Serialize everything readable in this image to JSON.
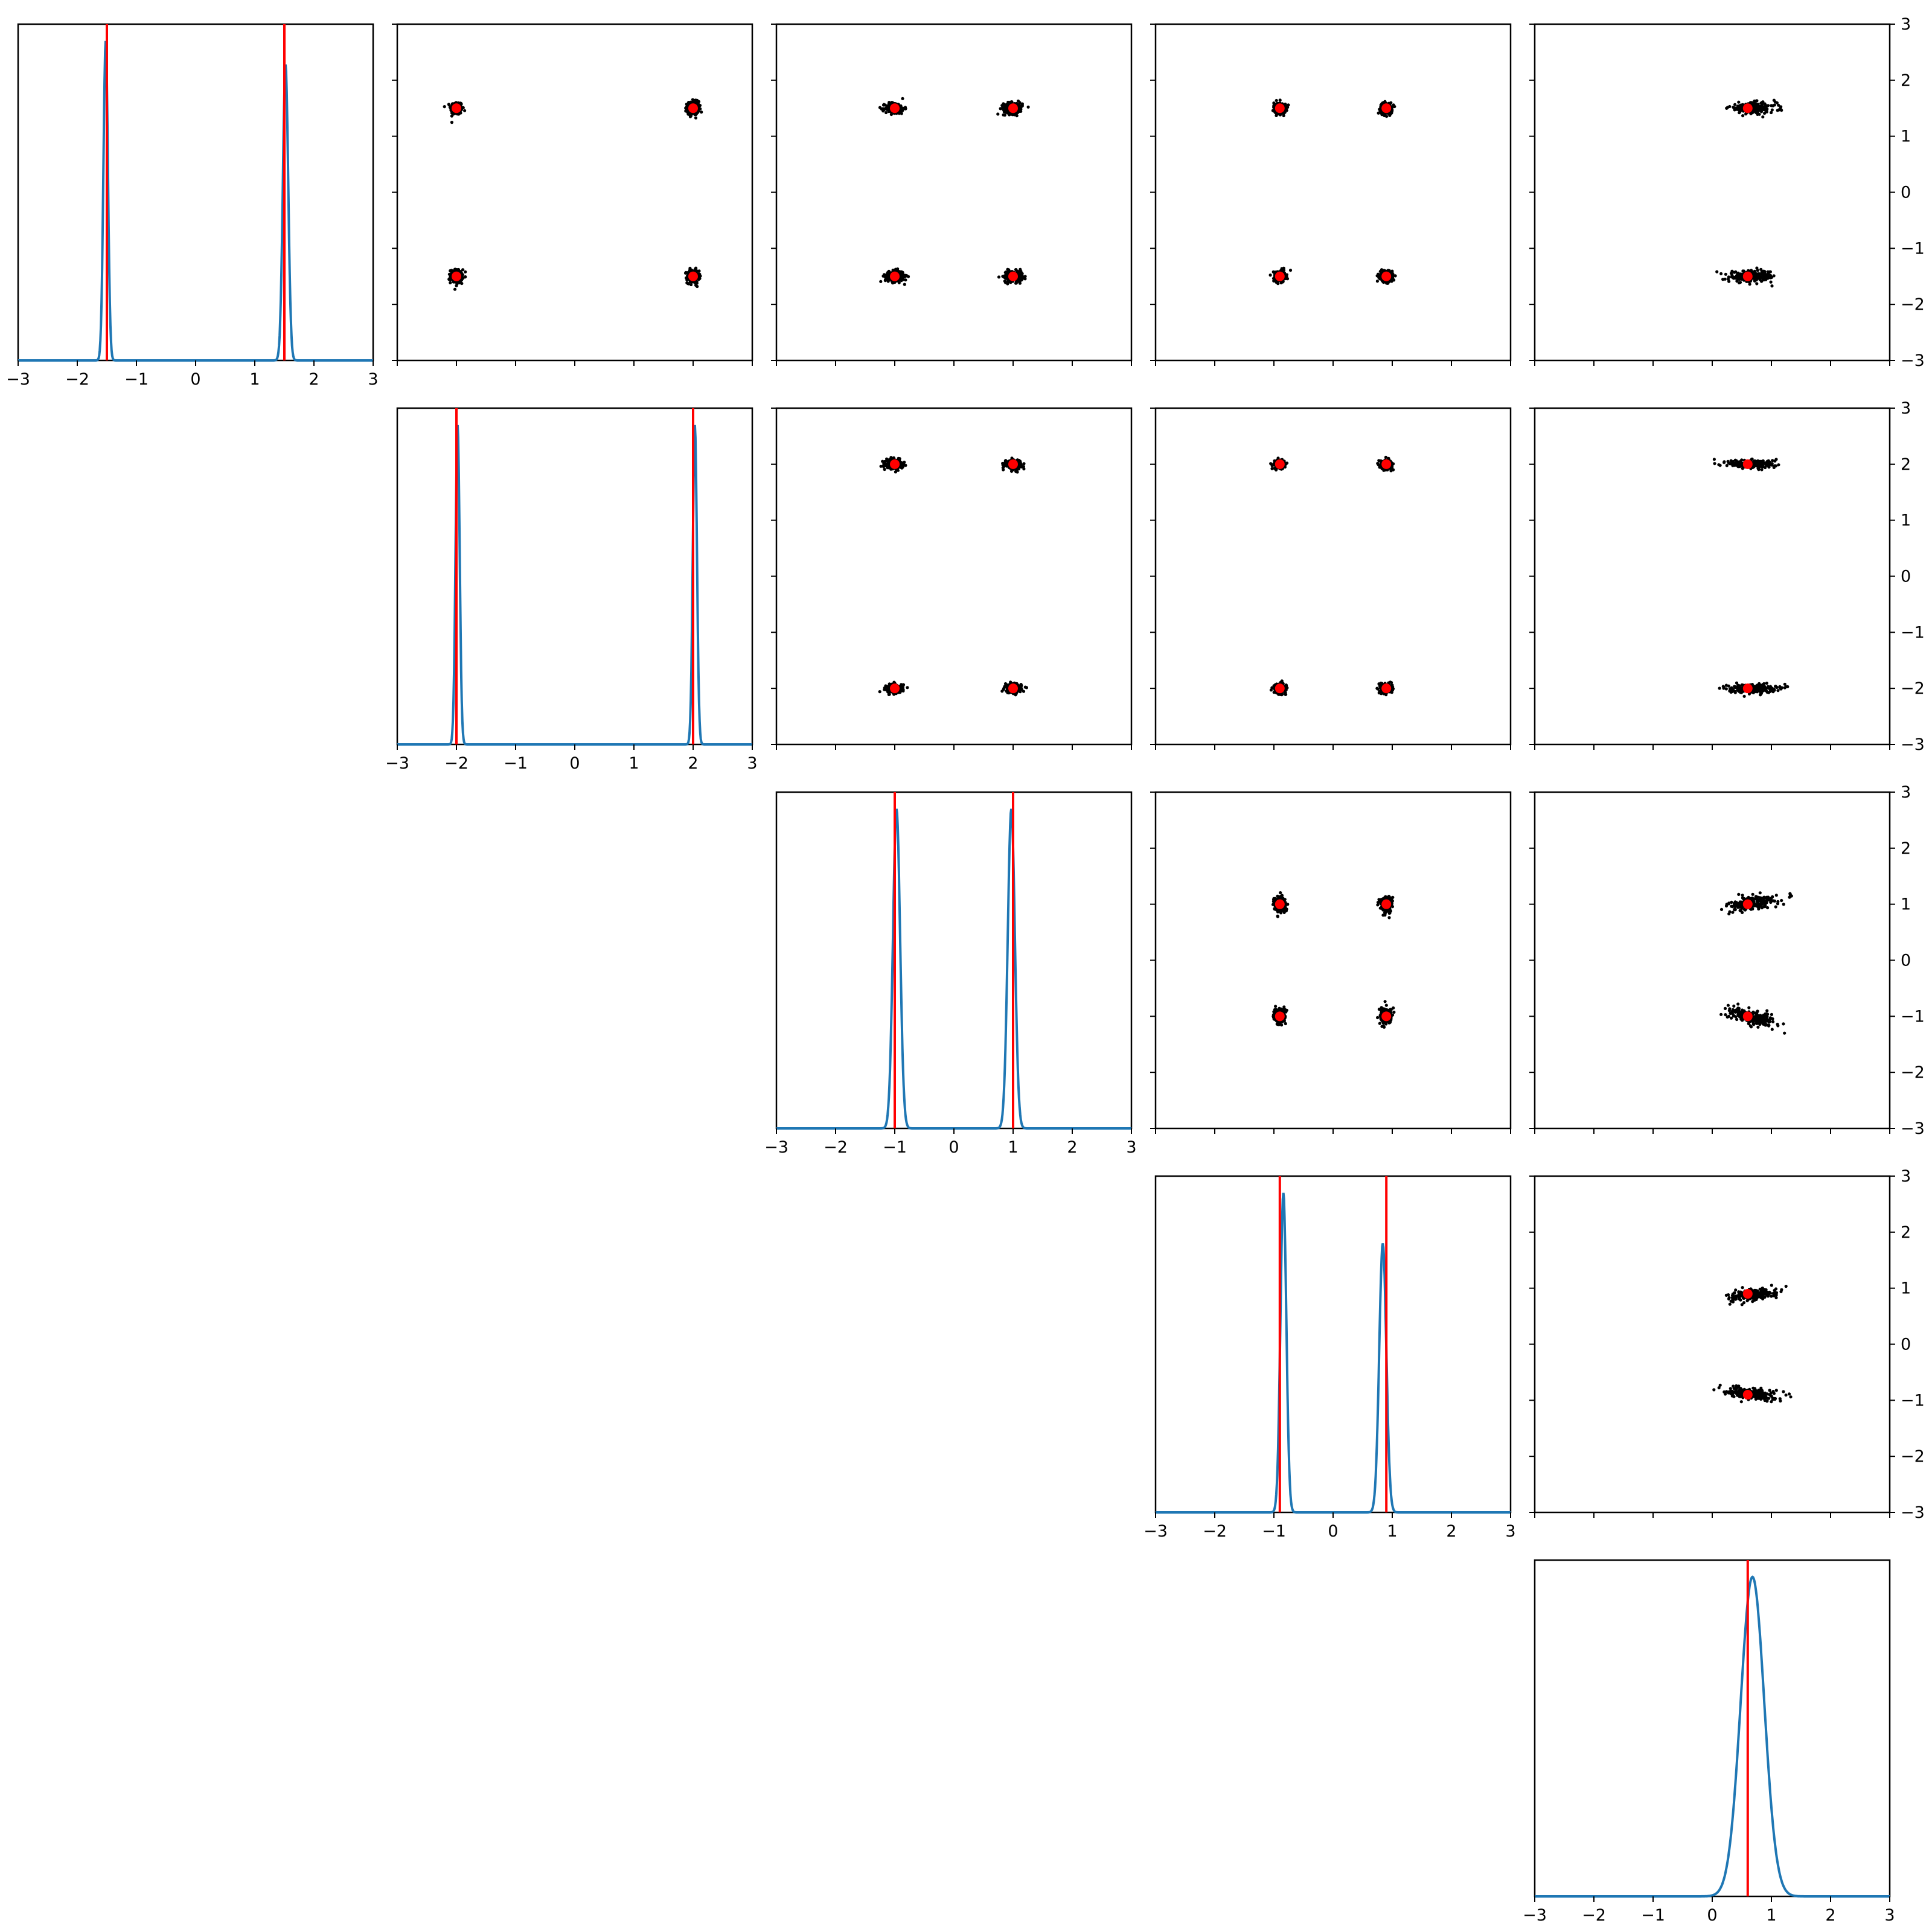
{
  "figure": {
    "colors": {
      "density": "#1f77b4",
      "truth": "#ff0000",
      "sample": "#000000",
      "frame": "#000000",
      "background": "#ffffff"
    }
  },
  "chart_data": {
    "type": "corner",
    "n_params": 5,
    "axis_range": [
      -3,
      3
    ],
    "ticks": [
      -3,
      -2,
      -1,
      0,
      1,
      2,
      3
    ],
    "tick_labels": [
      "−3",
      "−2",
      "−1",
      "0",
      "1",
      "2",
      "3"
    ],
    "grid": false,
    "truth_values": [
      [
        -1.5,
        1.5
      ],
      [
        -2.0,
        2.0
      ],
      [
        -1.0,
        1.0
      ],
      [
        -0.9,
        0.9
      ],
      [
        0.6
      ]
    ],
    "marginals": [
      {
        "param": 0,
        "truth_lines": [
          -1.5,
          1.5
        ],
        "modes": [
          {
            "mu": -1.52,
            "sigma": 0.038,
            "peak": 0.95
          },
          {
            "mu": 1.52,
            "sigma": 0.045,
            "peak": 0.88
          }
        ]
      },
      {
        "param": 1,
        "truth_lines": [
          -2.0,
          2.0
        ],
        "modes": [
          {
            "mu": -1.98,
            "sigma": 0.035,
            "peak": 0.95
          },
          {
            "mu": 2.03,
            "sigma": 0.035,
            "peak": 0.95
          }
        ]
      },
      {
        "param": 2,
        "truth_lines": [
          -1.0,
          1.0
        ],
        "modes": [
          {
            "mu": -0.97,
            "sigma": 0.06,
            "peak": 0.95
          },
          {
            "mu": 0.97,
            "sigma": 0.06,
            "peak": 0.95
          }
        ]
      },
      {
        "param": 3,
        "truth_lines": [
          -0.9,
          0.9
        ],
        "modes": [
          {
            "mu": -0.84,
            "sigma": 0.05,
            "peak": 0.95
          },
          {
            "mu": 0.84,
            "sigma": 0.06,
            "peak": 0.8
          }
        ]
      },
      {
        "param": 4,
        "truth_lines": [
          0.6
        ],
        "modes": [
          {
            "mu": 0.68,
            "sigma": 0.2,
            "peak": 0.95
          }
        ]
      }
    ],
    "pairs": [
      {
        "row": 0,
        "col": 1,
        "clusters": [
          {
            "x": -2.0,
            "y": 1.5,
            "sx": 0.05,
            "sy": 0.06
          },
          {
            "x": 2.0,
            "y": 1.5,
            "sx": 0.05,
            "sy": 0.06
          },
          {
            "x": -2.0,
            "y": -1.5,
            "sx": 0.05,
            "sy": 0.06
          },
          {
            "x": 2.0,
            "y": -1.5,
            "sx": 0.05,
            "sy": 0.06
          }
        ],
        "truths": [
          [
            -2,
            1.5
          ],
          [
            2,
            1.5
          ],
          [
            -2,
            -1.5
          ],
          [
            2,
            -1.5
          ]
        ]
      },
      {
        "row": 0,
        "col": 2,
        "clusters": [
          {
            "x": -1.0,
            "y": 1.5,
            "sx": 0.08,
            "sy": 0.05
          },
          {
            "x": 1.0,
            "y": 1.5,
            "sx": 0.08,
            "sy": 0.05
          },
          {
            "x": -1.0,
            "y": -1.5,
            "sx": 0.08,
            "sy": 0.05
          },
          {
            "x": 1.0,
            "y": -1.5,
            "sx": 0.08,
            "sy": 0.05
          }
        ],
        "truths": [
          [
            -1,
            1.5
          ],
          [
            1,
            1.5
          ],
          [
            -1,
            -1.5
          ],
          [
            1,
            -1.5
          ]
        ]
      },
      {
        "row": 0,
        "col": 3,
        "clusters": [
          {
            "x": -0.9,
            "y": 1.5,
            "sx": 0.05,
            "sy": 0.05
          },
          {
            "x": 0.9,
            "y": 1.5,
            "sx": 0.05,
            "sy": 0.05
          },
          {
            "x": -0.9,
            "y": -1.5,
            "sx": 0.05,
            "sy": 0.05
          },
          {
            "x": 0.9,
            "y": -1.5,
            "sx": 0.05,
            "sy": 0.05
          }
        ],
        "truths": [
          [
            -0.9,
            1.5
          ],
          [
            0.9,
            1.5
          ],
          [
            -0.9,
            -1.5
          ],
          [
            0.9,
            -1.5
          ]
        ]
      },
      {
        "row": 0,
        "col": 4,
        "clusters": [
          {
            "x": 0.68,
            "y": 1.5,
            "sx": 0.2,
            "sy": 0.05
          },
          {
            "x": 0.68,
            "y": -1.5,
            "sx": 0.2,
            "sy": 0.05
          }
        ],
        "truths": [
          [
            0.6,
            1.5
          ],
          [
            0.6,
            -1.5
          ]
        ]
      },
      {
        "row": 1,
        "col": 2,
        "clusters": [
          {
            "x": -1.0,
            "y": 2.0,
            "sx": 0.07,
            "sy": 0.04
          },
          {
            "x": 1.0,
            "y": 2.0,
            "sx": 0.07,
            "sy": 0.04
          },
          {
            "x": -1.0,
            "y": -2.0,
            "sx": 0.07,
            "sy": 0.04
          },
          {
            "x": 1.0,
            "y": -2.0,
            "sx": 0.07,
            "sy": 0.04
          }
        ],
        "truths": [
          [
            -1,
            2
          ],
          [
            1,
            2
          ],
          [
            -1,
            -2
          ],
          [
            1,
            -2
          ]
        ]
      },
      {
        "row": 1,
        "col": 3,
        "clusters": [
          {
            "x": -0.9,
            "y": 2.0,
            "sx": 0.05,
            "sy": 0.04
          },
          {
            "x": 0.9,
            "y": 2.0,
            "sx": 0.05,
            "sy": 0.04
          },
          {
            "x": -0.9,
            "y": -2.0,
            "sx": 0.05,
            "sy": 0.04
          },
          {
            "x": 0.9,
            "y": -2.0,
            "sx": 0.05,
            "sy": 0.04
          }
        ],
        "truths": [
          [
            -0.9,
            2
          ],
          [
            0.9,
            2
          ],
          [
            -0.9,
            -2
          ],
          [
            0.9,
            -2
          ]
        ]
      },
      {
        "row": 1,
        "col": 4,
        "clusters": [
          {
            "x": 0.68,
            "y": 2.0,
            "sx": 0.2,
            "sy": 0.04
          },
          {
            "x": 0.68,
            "y": -2.0,
            "sx": 0.2,
            "sy": 0.04
          }
        ],
        "truths": [
          [
            0.6,
            2
          ],
          [
            0.6,
            -2
          ]
        ]
      },
      {
        "row": 2,
        "col": 3,
        "clusters": [
          {
            "x": -0.9,
            "y": 1.0,
            "sx": 0.05,
            "sy": 0.07
          },
          {
            "x": 0.9,
            "y": 1.0,
            "sx": 0.05,
            "sy": 0.07
          },
          {
            "x": -0.9,
            "y": -1.0,
            "sx": 0.05,
            "sy": 0.07
          },
          {
            "x": 0.9,
            "y": -1.0,
            "sx": 0.05,
            "sy": 0.07
          }
        ],
        "truths": [
          [
            -0.9,
            1
          ],
          [
            0.9,
            1
          ],
          [
            -0.9,
            -1
          ],
          [
            0.9,
            -1
          ]
        ]
      },
      {
        "row": 2,
        "col": 4,
        "clusters": [
          {
            "x": 0.68,
            "y": 1.02,
            "sx": 0.2,
            "sy": 0.06,
            "tilt": 0.2
          },
          {
            "x": 0.68,
            "y": -1.02,
            "sx": 0.2,
            "sy": 0.06,
            "tilt": -0.2
          }
        ],
        "truths": [
          [
            0.6,
            1
          ],
          [
            0.6,
            -1
          ]
        ]
      },
      {
        "row": 3,
        "col": 4,
        "clusters": [
          {
            "x": 0.68,
            "y": 0.88,
            "sx": 0.2,
            "sy": 0.05,
            "tilt": 0.1
          },
          {
            "x": 0.68,
            "y": -0.88,
            "sx": 0.2,
            "sy": 0.05,
            "tilt": -0.1
          }
        ],
        "truths": [
          [
            0.6,
            0.9
          ],
          [
            0.6,
            -0.9
          ]
        ]
      }
    ]
  }
}
